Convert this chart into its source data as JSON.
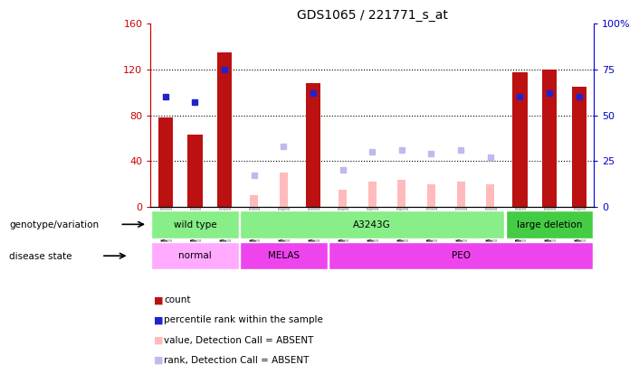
{
  "title": "GDS1065 / 221771_s_at",
  "samples": [
    "GSM24652",
    "GSM24653",
    "GSM24654",
    "GSM24655",
    "GSM24656",
    "GSM24657",
    "GSM24658",
    "GSM24659",
    "GSM24660",
    "GSM24661",
    "GSM24662",
    "GSM24663",
    "GSM24664",
    "GSM24665",
    "GSM24666"
  ],
  "count": [
    78,
    63,
    135,
    null,
    null,
    108,
    null,
    null,
    null,
    null,
    null,
    null,
    118,
    120,
    105
  ],
  "percentile_rank": [
    60,
    57,
    75,
    null,
    null,
    62,
    null,
    null,
    null,
    null,
    null,
    null,
    60,
    62,
    60
  ],
  "value_absent": [
    null,
    null,
    null,
    10,
    30,
    null,
    15,
    22,
    24,
    20,
    22,
    20,
    null,
    null,
    null
  ],
  "rank_absent": [
    null,
    null,
    null,
    17,
    33,
    null,
    20,
    30,
    31,
    29,
    31,
    27,
    null,
    null,
    null
  ],
  "ylim_left": [
    0,
    160
  ],
  "ylim_right": [
    0,
    100
  ],
  "yticks_left": [
    0,
    40,
    80,
    120,
    160
  ],
  "yticks_right": [
    0,
    25,
    50,
    75,
    100
  ],
  "yticklabels_right": [
    "0",
    "25",
    "50",
    "75",
    "100%"
  ],
  "bar_color_red": "#bb1111",
  "bar_color_pink": "#ffbbbb",
  "dot_color_blue": "#2222cc",
  "dot_color_lightblue": "#bbbbee",
  "bg_color": "#ffffff",
  "plot_bg": "#ffffff",
  "genotype_groups": [
    {
      "label": "wild type",
      "start": 0,
      "end": 3,
      "color": "#88ee88"
    },
    {
      "label": "A3243G",
      "start": 3,
      "end": 12,
      "color": "#88ee88"
    },
    {
      "label": "large deletion",
      "start": 12,
      "end": 15,
      "color": "#44cc44"
    }
  ],
  "disease_groups": [
    {
      "label": "normal",
      "start": 0,
      "end": 3,
      "color": "#ffaaff"
    },
    {
      "label": "MELAS",
      "start": 3,
      "end": 6,
      "color": "#ee44ee"
    },
    {
      "label": "PEO",
      "start": 6,
      "end": 15,
      "color": "#ee44ee"
    }
  ],
  "legend_items": [
    {
      "label": "count",
      "color": "#bb1111"
    },
    {
      "label": "percentile rank within the sample",
      "color": "#2222cc"
    },
    {
      "label": "value, Detection Call = ABSENT",
      "color": "#ffbbbb"
    },
    {
      "label": "rank, Detection Call = ABSENT",
      "color": "#bbbbee"
    }
  ],
  "left_axis_color": "#cc0000",
  "right_axis_color": "#0000cc",
  "bar_width": 0.5
}
